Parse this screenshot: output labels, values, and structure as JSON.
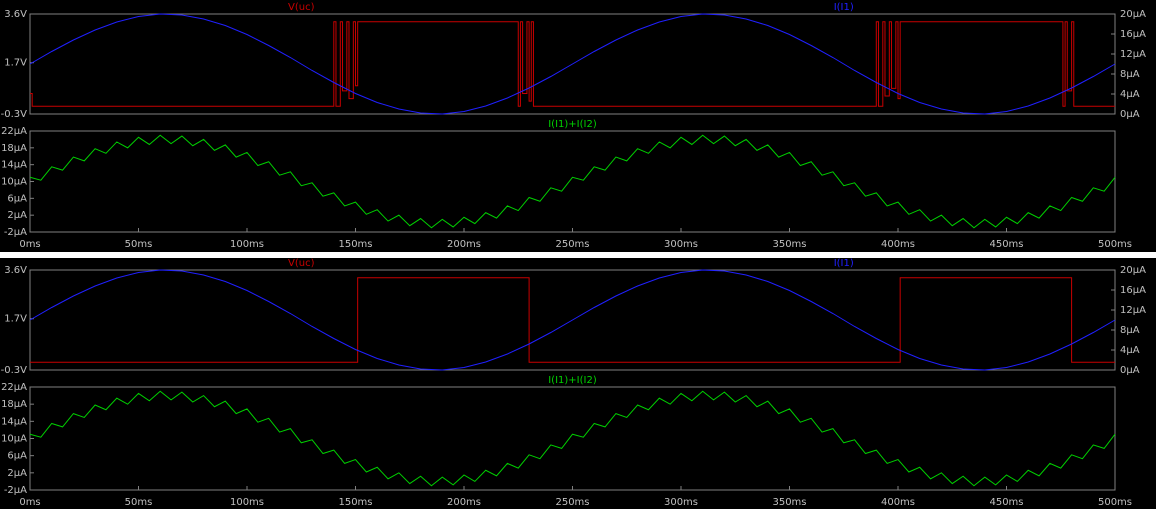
{
  "chart_data": [
    {
      "type": "line",
      "xlim": [
        0,
        500
      ],
      "ylim": [
        -0.3,
        3.6
      ],
      "yticks": [
        {
          "value": -0.3,
          "label": "-0.3V"
        },
        {
          "value": 1.7,
          "label": "1.7V"
        },
        {
          "value": 3.6,
          "label": "3.6V"
        }
      ],
      "y2lim": [
        0,
        20
      ],
      "y2ticks": [
        {
          "value": 0,
          "label": "0µA"
        },
        {
          "value": 4,
          "label": "4µA"
        },
        {
          "value": 8,
          "label": "8µA"
        },
        {
          "value": 12,
          "label": "12µA"
        },
        {
          "value": 16,
          "label": "16µA"
        },
        {
          "value": 20,
          "label": "20µA"
        }
      ],
      "series": [
        {
          "name": "V(uc)",
          "color": "#c80000",
          "x": [
            0,
            1,
            1,
            140,
            140,
            141,
            141,
            143,
            143,
            144,
            144,
            146,
            146,
            147,
            147,
            149,
            149,
            150,
            150,
            151,
            151,
            225,
            225,
            226,
            226,
            227,
            227,
            229,
            229,
            230,
            230,
            231,
            231,
            232,
            232,
            390,
            390,
            391,
            391,
            393,
            393,
            394,
            394,
            396,
            396,
            397,
            397,
            399,
            399,
            400,
            400,
            401,
            401,
            476,
            476,
            477,
            477,
            478,
            478,
            480,
            480,
            481,
            481,
            500
          ],
          "values": [
            0.5,
            0.5,
            0,
            0,
            3.3,
            3.3,
            0,
            0,
            3.3,
            3.3,
            0.6,
            0.6,
            3.3,
            3.3,
            0.3,
            0.3,
            3.3,
            3.3,
            0.8,
            0.8,
            3.3,
            3.3,
            0,
            0,
            3.3,
            3.3,
            0.5,
            0.5,
            3.3,
            3.3,
            0.2,
            0.2,
            3.3,
            3.3,
            0,
            0,
            3.3,
            3.3,
            0,
            0,
            3.3,
            3.3,
            0.4,
            0.4,
            3.3,
            3.3,
            0.7,
            0.7,
            3.3,
            3.3,
            0.3,
            0.3,
            3.3,
            3.3,
            0,
            0,
            3.3,
            3.3,
            0.6,
            0.6,
            3.3,
            3.3,
            0,
            0
          ]
        },
        {
          "name": "I(I1)",
          "color": "#2020ff",
          "axis": "y2",
          "x": [
            0,
            10,
            20,
            30,
            40,
            50,
            60,
            70,
            80,
            90,
            100,
            110,
            120,
            130,
            140,
            150,
            160,
            170,
            180,
            190,
            200,
            210,
            220,
            230,
            240,
            250,
            260,
            270,
            280,
            290,
            300,
            310,
            320,
            330,
            340,
            350,
            360,
            370,
            380,
            390,
            400,
            410,
            420,
            430,
            440,
            450,
            460,
            470,
            480,
            490,
            500
          ],
          "values": [
            10,
            12.5,
            14.8,
            16.8,
            18.4,
            19.5,
            20.0,
            19.8,
            19.0,
            17.7,
            15.9,
            13.7,
            11.3,
            8.7,
            6.3,
            4.1,
            2.3,
            1.0,
            0.2,
            0.0,
            0.5,
            1.6,
            3.2,
            5.2,
            7.5,
            10.0,
            12.5,
            14.8,
            16.8,
            18.4,
            19.5,
            20.0,
            19.8,
            19.0,
            17.7,
            15.9,
            13.7,
            11.3,
            8.7,
            6.3,
            4.1,
            2.3,
            1.0,
            0.2,
            0.0,
            0.5,
            1.6,
            3.2,
            5.2,
            7.5,
            10.0
          ]
        }
      ]
    },
    {
      "type": "line",
      "xlim": [
        0,
        500
      ],
      "xticks": [
        {
          "value": 0,
          "label": "0ms"
        },
        {
          "value": 50,
          "label": "50ms"
        },
        {
          "value": 100,
          "label": "100ms"
        },
        {
          "value": 150,
          "label": "150ms"
        },
        {
          "value": 200,
          "label": "200ms"
        },
        {
          "value": 250,
          "label": "250ms"
        },
        {
          "value": 300,
          "label": "300ms"
        },
        {
          "value": 350,
          "label": "350ms"
        },
        {
          "value": 400,
          "label": "400ms"
        },
        {
          "value": 450,
          "label": "450ms"
        },
        {
          "value": 500,
          "label": "500ms"
        }
      ],
      "ylim": [
        -2,
        22
      ],
      "yticks": [
        {
          "value": -2,
          "label": "-2µA"
        },
        {
          "value": 2,
          "label": "2µA"
        },
        {
          "value": 6,
          "label": "6µA"
        },
        {
          "value": 10,
          "label": "10µA"
        },
        {
          "value": 14,
          "label": "14µA"
        },
        {
          "value": 18,
          "label": "18µA"
        },
        {
          "value": 22,
          "label": "22µA"
        }
      ],
      "series": [
        {
          "name": "I(I1)+I(I2)",
          "color": "#00d000",
          "x": [
            0,
            5,
            10,
            15,
            20,
            25,
            30,
            35,
            40,
            45,
            50,
            55,
            60,
            65,
            70,
            75,
            80,
            85,
            90,
            95,
            100,
            105,
            110,
            115,
            120,
            125,
            130,
            135,
            140,
            145,
            150,
            155,
            160,
            165,
            170,
            175,
            180,
            185,
            190,
            195,
            200,
            205,
            210,
            215,
            220,
            225,
            230,
            235,
            240,
            245,
            250,
            255,
            260,
            265,
            270,
            275,
            280,
            285,
            290,
            295,
            300,
            305,
            310,
            315,
            320,
            325,
            330,
            335,
            340,
            345,
            350,
            355,
            360,
            365,
            370,
            375,
            380,
            385,
            390,
            395,
            400,
            405,
            410,
            415,
            420,
            425,
            430,
            435,
            440,
            445,
            450,
            455,
            460,
            465,
            470,
            475,
            480,
            485,
            490,
            495,
            500
          ],
          "values": [
            11,
            10.3,
            13.5,
            12.7,
            15.8,
            14.9,
            17.8,
            16.7,
            19.4,
            18.0,
            20.5,
            18.8,
            21.0,
            19.0,
            20.8,
            18.5,
            20.0,
            17.4,
            18.7,
            15.8,
            16.9,
            13.8,
            14.7,
            11.5,
            12.3,
            9.0,
            9.7,
            6.5,
            7.3,
            4.2,
            5.1,
            2.2,
            3.3,
            0.6,
            2.0,
            -0.5,
            1.2,
            -1.0,
            1.0,
            -0.8,
            1.5,
            0,
            2.6,
            1.3,
            4.2,
            3.1,
            6.2,
            5.3,
            8.5,
            7.7,
            11,
            10.3,
            13.5,
            12.7,
            15.8,
            14.9,
            17.8,
            16.7,
            19.4,
            18.0,
            20.5,
            18.8,
            21.0,
            19.0,
            20.8,
            18.5,
            20.0,
            17.4,
            18.7,
            15.8,
            16.9,
            13.8,
            14.7,
            11.5,
            12.3,
            9.0,
            9.7,
            6.5,
            7.3,
            4.2,
            5.1,
            2.2,
            3.3,
            0.6,
            2.0,
            -0.5,
            1.2,
            -1.0,
            1.0,
            -0.8,
            1.5,
            0,
            2.6,
            1.3,
            4.2,
            3.1,
            6.2,
            5.3,
            8.5,
            7.7,
            11
          ]
        }
      ]
    },
    {
      "type": "line",
      "xlim": [
        0,
        500
      ],
      "ylim": [
        -0.3,
        3.6
      ],
      "yticks": [
        {
          "value": -0.3,
          "label": "-0.3V"
        },
        {
          "value": 1.7,
          "label": "1.7V"
        },
        {
          "value": 3.6,
          "label": "3.6V"
        }
      ],
      "y2lim": [
        0,
        20
      ],
      "y2ticks": [
        {
          "value": 0,
          "label": "0µA"
        },
        {
          "value": 4,
          "label": "4µA"
        },
        {
          "value": 8,
          "label": "8µA"
        },
        {
          "value": 12,
          "label": "12µA"
        },
        {
          "value": 16,
          "label": "16µA"
        },
        {
          "value": 20,
          "label": "20µA"
        }
      ],
      "series": [
        {
          "name": "V(uc)",
          "color": "#c80000",
          "x": [
            0,
            151,
            151,
            230,
            230,
            401,
            401,
            480,
            480,
            500
          ],
          "values": [
            0,
            0,
            3.3,
            3.3,
            0,
            0,
            3.3,
            3.3,
            0,
            0
          ]
        },
        {
          "name": "I(I1)",
          "color": "#2020ff",
          "axis": "y2",
          "x": [
            0,
            10,
            20,
            30,
            40,
            50,
            60,
            70,
            80,
            90,
            100,
            110,
            120,
            130,
            140,
            150,
            160,
            170,
            180,
            190,
            200,
            210,
            220,
            230,
            240,
            250,
            260,
            270,
            280,
            290,
            300,
            310,
            320,
            330,
            340,
            350,
            360,
            370,
            380,
            390,
            400,
            410,
            420,
            430,
            440,
            450,
            460,
            470,
            480,
            490,
            500
          ],
          "values": [
            10,
            12.5,
            14.8,
            16.8,
            18.4,
            19.5,
            20.0,
            19.8,
            19.0,
            17.7,
            15.9,
            13.7,
            11.3,
            8.7,
            6.3,
            4.1,
            2.3,
            1.0,
            0.2,
            0.0,
            0.5,
            1.6,
            3.2,
            5.2,
            7.5,
            10.0,
            12.5,
            14.8,
            16.8,
            18.4,
            19.5,
            20.0,
            19.8,
            19.0,
            17.7,
            15.9,
            13.7,
            11.3,
            8.7,
            6.3,
            4.1,
            2.3,
            1.0,
            0.2,
            0.0,
            0.5,
            1.6,
            3.2,
            5.2,
            7.5,
            10.0
          ]
        }
      ]
    },
    {
      "type": "line",
      "xlim": [
        0,
        500
      ],
      "xticks": [
        {
          "value": 0,
          "label": "0ms"
        },
        {
          "value": 50,
          "label": "50ms"
        },
        {
          "value": 100,
          "label": "100ms"
        },
        {
          "value": 150,
          "label": "150ms"
        },
        {
          "value": 200,
          "label": "200ms"
        },
        {
          "value": 250,
          "label": "250ms"
        },
        {
          "value": 300,
          "label": "300ms"
        },
        {
          "value": 350,
          "label": "350ms"
        },
        {
          "value": 400,
          "label": "400ms"
        },
        {
          "value": 450,
          "label": "450ms"
        },
        {
          "value": 500,
          "label": "500ms"
        }
      ],
      "ylim": [
        -2,
        22
      ],
      "yticks": [
        {
          "value": -2,
          "label": "-2µA"
        },
        {
          "value": 2,
          "label": "2µA"
        },
        {
          "value": 6,
          "label": "6µA"
        },
        {
          "value": 10,
          "label": "10µA"
        },
        {
          "value": 14,
          "label": "14µA"
        },
        {
          "value": 18,
          "label": "18µA"
        },
        {
          "value": 22,
          "label": "22µA"
        }
      ],
      "series": [
        {
          "name": "I(I1)+I(I2)",
          "color": "#00d000",
          "x": [
            0,
            5,
            10,
            15,
            20,
            25,
            30,
            35,
            40,
            45,
            50,
            55,
            60,
            65,
            70,
            75,
            80,
            85,
            90,
            95,
            100,
            105,
            110,
            115,
            120,
            125,
            130,
            135,
            140,
            145,
            150,
            155,
            160,
            165,
            170,
            175,
            180,
            185,
            190,
            195,
            200,
            205,
            210,
            215,
            220,
            225,
            230,
            235,
            240,
            245,
            250,
            255,
            260,
            265,
            270,
            275,
            280,
            285,
            290,
            295,
            300,
            305,
            310,
            315,
            320,
            325,
            330,
            335,
            340,
            345,
            350,
            355,
            360,
            365,
            370,
            375,
            380,
            385,
            390,
            395,
            400,
            405,
            410,
            415,
            420,
            425,
            430,
            435,
            440,
            445,
            450,
            455,
            460,
            465,
            470,
            475,
            480,
            485,
            490,
            495,
            500
          ],
          "values": [
            11,
            10.3,
            13.5,
            12.7,
            15.8,
            14.9,
            17.8,
            16.7,
            19.4,
            18.0,
            20.5,
            18.8,
            21.0,
            19.0,
            20.8,
            18.5,
            20.0,
            17.4,
            18.7,
            15.8,
            16.9,
            13.8,
            14.7,
            11.5,
            12.3,
            9.0,
            9.7,
            6.5,
            7.3,
            4.2,
            5.1,
            2.2,
            3.3,
            0.6,
            2.0,
            -0.5,
            1.2,
            -1.0,
            1.0,
            -0.8,
            1.5,
            0,
            2.6,
            1.3,
            4.2,
            3.1,
            6.2,
            5.3,
            8.5,
            7.7,
            11,
            10.3,
            13.5,
            12.7,
            15.8,
            14.9,
            17.8,
            16.7,
            19.4,
            18.0,
            20.5,
            18.8,
            21.0,
            19.0,
            20.8,
            18.5,
            20.0,
            17.4,
            18.7,
            15.8,
            16.9,
            13.8,
            14.7,
            11.5,
            12.3,
            9.0,
            9.7,
            6.5,
            7.3,
            4.2,
            5.1,
            2.2,
            3.3,
            0.6,
            2.0,
            -0.5,
            1.2,
            -1.0,
            1.0,
            -0.8,
            1.5,
            0,
            2.6,
            1.3,
            4.2,
            3.1,
            6.2,
            5.3,
            8.5,
            7.7,
            11
          ]
        }
      ]
    }
  ]
}
